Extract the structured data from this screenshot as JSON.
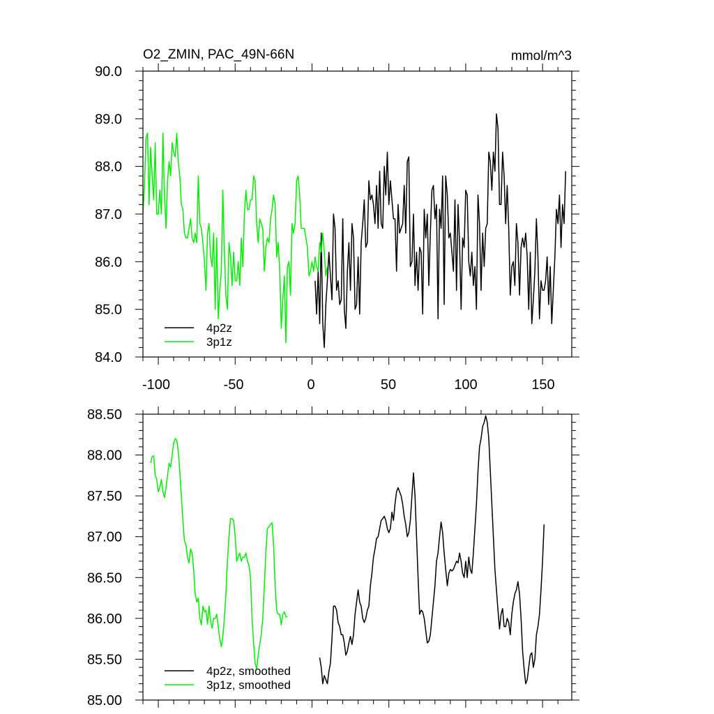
{
  "chart_data": [
    {
      "type": "line",
      "title": "O2_ZMIN, PAC_49N-66N",
      "units": "mmol/m^3",
      "xlim": [
        -110,
        169
      ],
      "ylim": [
        84.0,
        90.0
      ],
      "x_ticks": [
        -100,
        -50,
        0,
        50,
        100,
        150
      ],
      "x_tick_labels": [
        "-100",
        "-50",
        "0",
        "50",
        "100",
        "150"
      ],
      "y_ticks": [
        84.0,
        85.0,
        86.0,
        87.0,
        88.0,
        89.0,
        90.0
      ],
      "y_tick_labels": [
        "84.0",
        "85.0",
        "86.0",
        "87.0",
        "88.0",
        "89.0",
        "90.0"
      ],
      "legend_position": "bottom-left",
      "series": [
        {
          "name": "4p2z",
          "color": "#000000",
          "x_start": 2,
          "x_step": 1,
          "values": [
            85.6,
            84.9,
            85.8,
            84.7,
            86.6,
            84.7,
            84.2,
            85.1,
            85.6,
            86.2,
            85.7,
            85.2,
            87.0,
            86.7,
            85.4,
            85.6,
            85.1,
            85.2,
            86.9,
            85.0,
            84.6,
            85.8,
            86.4,
            85.4,
            86.8,
            86.5,
            85.0,
            85.1,
            86.1,
            84.9,
            86.4,
            86.8,
            87.3,
            86.3,
            86.4,
            87.7,
            87.3,
            87.4,
            87.2,
            86.8,
            87.6,
            86.7,
            87.9,
            86.8,
            86.7,
            88.0,
            87.4,
            88.3,
            87.2,
            87.7,
            87.3,
            86.9,
            86.9,
            85.8,
            87.2,
            86.6,
            86.7,
            86.8,
            87.6,
            86.6,
            88.1,
            88.2,
            85.9,
            86.0,
            87.0,
            85.5,
            86.2,
            85.4,
            86.3,
            86.2,
            84.9,
            87.1,
            86.5,
            87.0,
            85.5,
            86.6,
            87.5,
            87.6,
            86.9,
            87.2,
            84.8,
            87.1,
            86.7,
            87.8,
            85.1,
            87.8,
            87.4,
            86.5,
            86.6,
            86.2,
            85.8,
            87.3,
            85.4,
            87.2,
            86.4,
            85.0,
            86.5,
            86.3,
            87.5,
            87.4,
            86.0,
            85.7,
            86.2,
            85.5,
            85.9,
            85.0,
            87.4,
            86.8,
            85.4,
            86.6,
            85.9,
            86.7,
            86.8,
            88.3,
            88.1,
            87.5,
            88.3,
            87.9,
            89.1,
            88.8,
            87.2,
            87.2,
            88.3,
            87.8,
            86.8,
            87.6,
            86.7,
            85.3,
            85.9,
            86.0,
            85.5,
            86.8,
            86.4,
            85.3,
            86.3,
            86.5,
            86.3,
            86.6,
            86.1,
            85.0,
            86.2,
            84.7,
            85.2,
            85.8,
            86.9,
            86.1,
            84.8,
            85.6,
            85.4,
            85.4,
            85.6,
            86.1,
            85.1,
            85.9,
            84.7,
            85.4,
            86.1,
            87.1,
            86.8,
            87.4,
            86.3,
            87.2,
            86.8,
            87.9
          ]
        },
        {
          "name": "3p1z",
          "color": "#00ee00",
          "x_start": -110,
          "x_step": 1,
          "values": [
            87.0,
            87.6,
            88.6,
            88.7,
            87.2,
            88.4,
            87.8,
            87.3,
            88.5,
            87.0,
            87.0,
            87.5,
            87.0,
            88.7,
            87.4,
            86.7,
            87.7,
            88.1,
            87.8,
            88.5,
            88.3,
            88.2,
            88.7,
            88.1,
            87.8,
            87.2,
            87.1,
            86.6,
            86.5,
            86.5,
            86.7,
            86.9,
            86.5,
            86.4,
            86.6,
            86.4,
            87.8,
            86.8,
            86.7,
            86.4,
            86.0,
            85.4,
            86.6,
            86.8,
            86.1,
            85.9,
            86.6,
            85.0,
            86.5,
            84.8,
            85.4,
            85.8,
            87.5,
            86.2,
            85.3,
            85.0,
            86.4,
            86.1,
            85.5,
            86.2,
            85.6,
            85.6,
            86.0,
            85.5,
            86.5,
            85.9,
            87.0,
            87.5,
            87.1,
            87.1,
            87.3,
            87.3,
            87.8,
            87.7,
            86.8,
            86.4,
            86.9,
            86.8,
            86.7,
            85.8,
            86.3,
            86.5,
            86.4,
            86.9,
            87.1,
            87.4,
            87.2,
            86.1,
            86.4,
            85.8,
            84.6,
            85.2,
            85.7,
            84.3,
            85.9,
            86.0,
            85.3,
            86.8,
            86.6,
            86.8,
            87.7,
            87.8,
            87.4,
            86.7,
            86.7,
            86.7,
            86.5,
            86.3,
            85.7,
            85.8,
            86.0,
            85.8,
            86.1,
            85.9,
            85.8,
            86.4,
            86.2,
            86.6,
            86.2,
            85.7,
            85.9
          ]
        }
      ]
    },
    {
      "type": "line",
      "xlim": [
        -110,
        169
      ],
      "ylim": [
        85.0,
        88.5
      ],
      "x_ticks": [
        -100,
        -50,
        0,
        50,
        100,
        150
      ],
      "y_ticks": [
        85.0,
        85.5,
        86.0,
        86.5,
        87.0,
        87.5,
        88.0,
        88.5
      ],
      "y_tick_labels": [
        "85.00",
        "85.50",
        "86.00",
        "86.50",
        "87.00",
        "87.50",
        "88.00",
        "88.50"
      ],
      "legend_position": "bottom-left",
      "series": [
        {
          "name": "4p2z, smoothed",
          "color": "#000000",
          "x_start": 5,
          "x_step": 1,
          "values": [
            85.52,
            85.4,
            85.2,
            85.3,
            85.25,
            85.2,
            85.35,
            85.45,
            85.75,
            86.15,
            86.15,
            86.1,
            85.95,
            85.9,
            85.8,
            85.8,
            85.7,
            85.55,
            85.6,
            85.7,
            85.78,
            85.68,
            85.8,
            86.05,
            86.2,
            86.35,
            86.2,
            86.15,
            86.0,
            85.95,
            86.0,
            86.1,
            86.15,
            86.4,
            86.55,
            86.75,
            86.85,
            86.98,
            87.0,
            87.1,
            87.2,
            87.22,
            87.25,
            87.2,
            87.1,
            87.05,
            87.1,
            87.3,
            87.2,
            87.4,
            87.55,
            87.6,
            87.55,
            87.5,
            87.4,
            87.25,
            87.15,
            87.0,
            87.05,
            87.2,
            87.5,
            87.78,
            87.5,
            87.0,
            86.5,
            86.05,
            86.1,
            86.08,
            86.0,
            85.85,
            85.7,
            85.72,
            85.8,
            86.0,
            86.2,
            86.4,
            86.7,
            86.8,
            87.0,
            87.18,
            87.05,
            86.8,
            86.6,
            86.4,
            86.55,
            86.6,
            86.58,
            86.6,
            86.65,
            86.7,
            86.68,
            86.8,
            86.7,
            86.55,
            86.5,
            86.7,
            86.5,
            86.75,
            86.6,
            86.55,
            86.8,
            87.1,
            87.4,
            87.8,
            88.1,
            88.2,
            88.35,
            88.4,
            88.48,
            88.4,
            88.2,
            87.8,
            87.4,
            87.0,
            86.6,
            86.35,
            86.1,
            85.87,
            86.05,
            86.12,
            85.9,
            85.9,
            86.0,
            85.95,
            85.8,
            86.05,
            86.2,
            86.3,
            86.35,
            86.45,
            86.3,
            86.0,
            85.6,
            85.38,
            85.2,
            85.25,
            85.4,
            85.55,
            85.58,
            85.4,
            85.5,
            85.8,
            85.9,
            86.05,
            86.35,
            86.7,
            87.15
          ]
        },
        {
          "name": "3p1z, smoothed",
          "color": "#00ee00",
          "x_start": -105,
          "x_step": 1,
          "values": [
            87.9,
            87.98,
            87.99,
            87.75,
            87.7,
            87.55,
            87.6,
            87.7,
            87.55,
            87.48,
            87.6,
            87.75,
            87.9,
            87.85,
            88.0,
            88.15,
            88.2,
            88.18,
            88.05,
            87.8,
            87.5,
            87.2,
            86.95,
            86.9,
            86.75,
            86.68,
            86.85,
            86.8,
            86.6,
            86.3,
            86.2,
            86.25,
            86.0,
            85.92,
            86.15,
            86.08,
            86.1,
            85.93,
            86.15,
            85.97,
            85.88,
            86.0,
            86.0,
            86.05,
            85.9,
            85.75,
            85.65,
            85.78,
            86.0,
            86.3,
            86.7,
            87.0,
            87.22,
            87.22,
            87.2,
            87.0,
            86.7,
            86.75,
            86.8,
            86.7,
            86.75,
            86.75,
            86.8,
            86.7,
            86.65,
            86.5,
            86.0,
            85.7,
            85.45,
            85.38,
            85.55,
            85.68,
            85.8,
            86.0,
            86.4,
            86.8,
            87.1,
            87.12,
            87.15,
            87.17,
            86.9,
            86.4,
            86.1,
            86.05,
            86.05,
            85.92,
            86.05,
            86.08,
            86.02,
            86.02
          ]
        }
      ]
    }
  ]
}
